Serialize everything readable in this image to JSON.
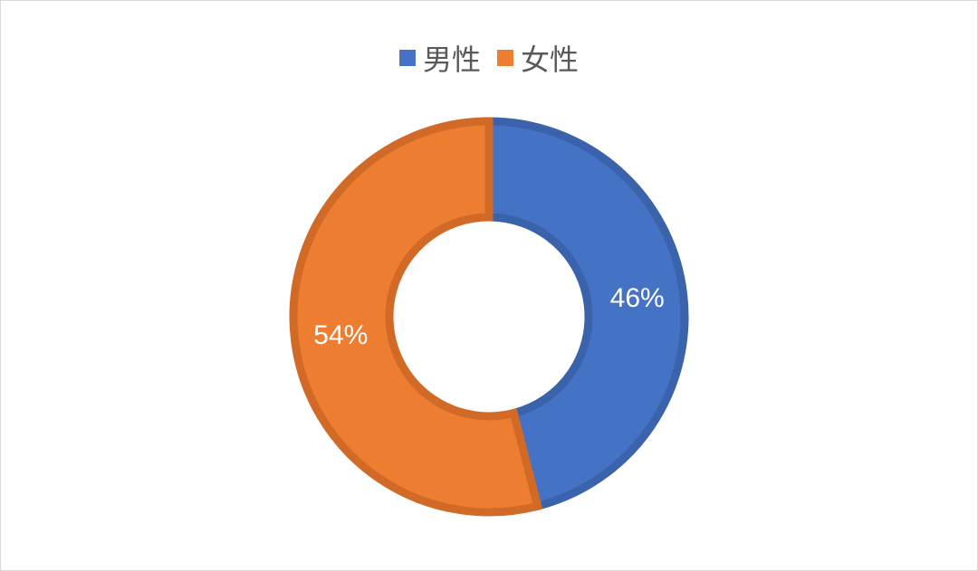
{
  "chart_data": {
    "type": "pie",
    "variant": "donut",
    "start_angle_deg": 0,
    "direction": "clockwise",
    "legend_position": "top",
    "slices": [
      {
        "name": "男性",
        "value": 46,
        "label": "46%",
        "color": "#4472C4",
        "edge_color": "#3A63AC"
      },
      {
        "name": "女性",
        "value": 54,
        "label": "54%",
        "color": "#ED7D31",
        "edge_color": "#D26A27"
      }
    ]
  }
}
